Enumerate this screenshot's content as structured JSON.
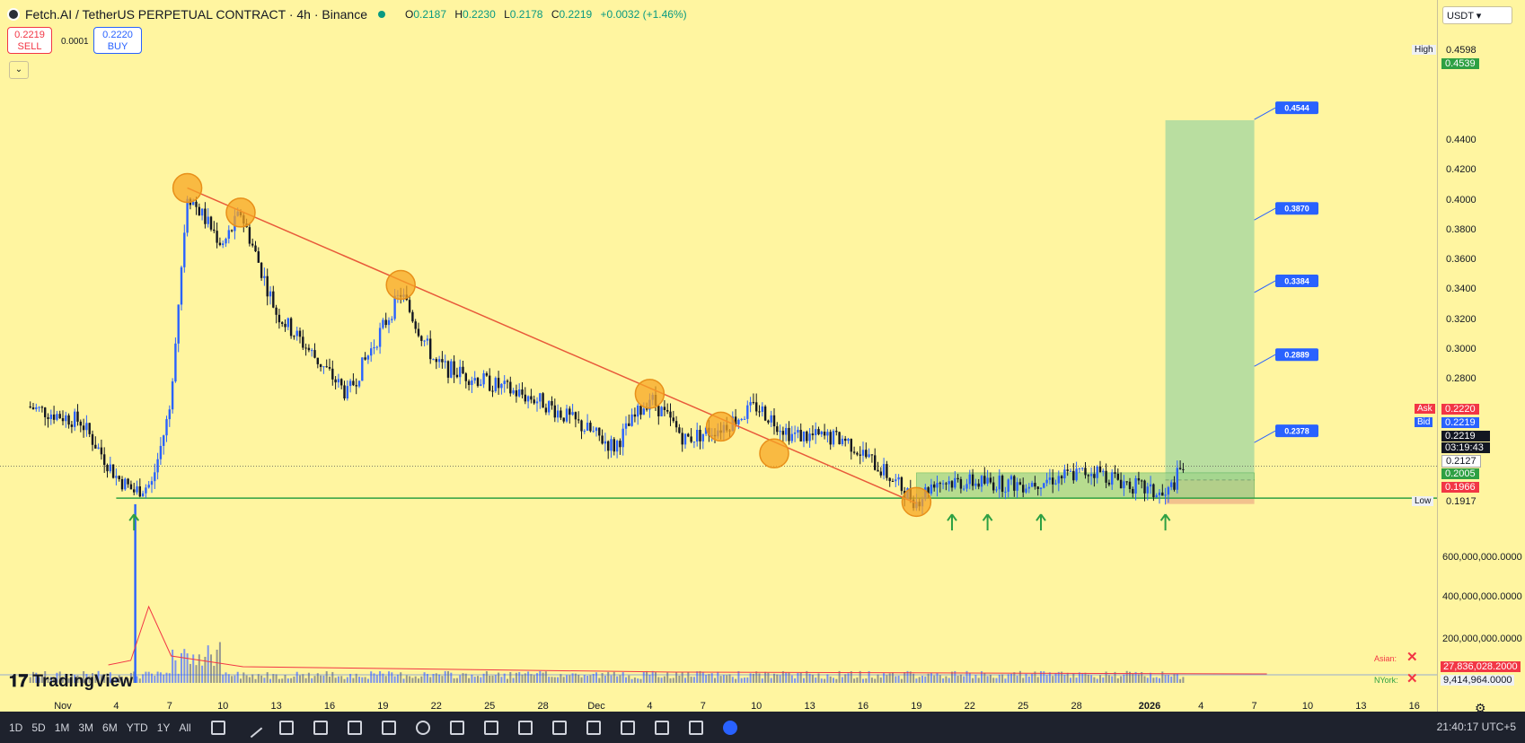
{
  "header": {
    "title": "Fetch.AI / TetherUS PERPETUAL CONTRACT · 4h · Binance",
    "ohlc": [
      {
        "label": "O",
        "value": "0.2187"
      },
      {
        "label": "H",
        "value": "0.2230"
      },
      {
        "label": "L",
        "value": "0.2178"
      },
      {
        "label": "C",
        "value": "0.2219"
      }
    ],
    "change": "+0.0032 (+1.46%)"
  },
  "trade": {
    "sell_price": "0.2219",
    "sell_label": "SELL",
    "spread": "0.0001",
    "buy_price": "0.2220",
    "buy_label": "BUY"
  },
  "currency": "USDT",
  "price_axis": {
    "ticks": [
      "0.4400",
      "0.4200",
      "0.4000",
      "0.3800",
      "0.3600",
      "0.3400",
      "0.3200",
      "0.3000",
      "0.2800",
      "0.2600"
    ],
    "high_label": "High",
    "high_value": "0.4598",
    "target_value": "0.4539",
    "ask_label": "Ask",
    "ask_value": "0.2220",
    "bid_label": "Bid",
    "bid_value": "0.2219",
    "last_price": "0.2219",
    "countdown": "03:19:43",
    "entry_value": "0.2127",
    "support_value": "0.2005",
    "stop_value": "0.1966",
    "low_label": "Low",
    "low_value": "0.1917"
  },
  "volume_axis": {
    "ticks": [
      "600,000,000.0000",
      "400,000,000.0000",
      "200,000,000.0000"
    ],
    "vol1": "27,836,028.2000",
    "vol2": "9,414,964.0000"
  },
  "sessions": [
    {
      "label": "Asian:"
    },
    {
      "label": "NYork:"
    }
  ],
  "x_axis": {
    "labels": [
      "Nov",
      "4",
      "7",
      "10",
      "13",
      "16",
      "19",
      "22",
      "25",
      "28",
      "Dec",
      "4",
      "7",
      "10",
      "13",
      "16",
      "19",
      "22",
      "25",
      "28",
      "2026",
      "4",
      "7",
      "10",
      "13",
      "16"
    ]
  },
  "targets": [
    "0.4544",
    "0.3870",
    "0.3384",
    "0.2889",
    "0.2378"
  ],
  "branding": "TradingView",
  "toolbar": {
    "timeframes": [
      "1D",
      "5D",
      "1M",
      "3M",
      "6M",
      "YTD",
      "1Y",
      "All"
    ],
    "clock": "21:40:17 UTC+5"
  },
  "colors": {
    "background": "#fff5a0",
    "trendline": "#e85a3a",
    "support": "#2ea043",
    "marker": "#f7a623",
    "target_zone": "#a8d8a0",
    "stop_zone": "#f0b98a",
    "target_label": "#2962ff",
    "up": "#2962ff",
    "down": "#131722"
  },
  "chart_data": {
    "type": "candlestick",
    "symbol": "Fetch.AI / TetherUS PERPETUAL CONTRACT",
    "interval": "4h",
    "exchange": "Binance",
    "ylim": [
      0.1917,
      0.4598
    ],
    "close_path": [
      {
        "date": "2025-10-30",
        "price": 0.262
      },
      {
        "date": "2025-11-02",
        "price": 0.252
      },
      {
        "date": "2025-11-04",
        "price": 0.215
      },
      {
        "date": "2025-11-05",
        "price": 0.205
      },
      {
        "date": "2025-11-06",
        "price": 0.21
      },
      {
        "date": "2025-11-07",
        "price": 0.26
      },
      {
        "date": "2025-11-08",
        "price": 0.405
      },
      {
        "date": "2025-11-10",
        "price": 0.37
      },
      {
        "date": "2025-11-11",
        "price": 0.392
      },
      {
        "date": "2025-11-13",
        "price": 0.325
      },
      {
        "date": "2025-11-17",
        "price": 0.27
      },
      {
        "date": "2025-11-20",
        "price": 0.338
      },
      {
        "date": "2025-11-22",
        "price": 0.29
      },
      {
        "date": "2025-11-28",
        "price": 0.265
      },
      {
        "date": "2025-12-02",
        "price": 0.235
      },
      {
        "date": "2025-12-04",
        "price": 0.268
      },
      {
        "date": "2025-12-06",
        "price": 0.24
      },
      {
        "date": "2025-12-08",
        "price": 0.248
      },
      {
        "date": "2025-12-10",
        "price": 0.262
      },
      {
        "date": "2025-12-12",
        "price": 0.243
      },
      {
        "date": "2025-12-15",
        "price": 0.24
      },
      {
        "date": "2025-12-17",
        "price": 0.22
      },
      {
        "date": "2025-12-19",
        "price": 0.198
      },
      {
        "date": "2025-12-20",
        "price": 0.212
      },
      {
        "date": "2025-12-25",
        "price": 0.21
      },
      {
        "date": "2025-12-29",
        "price": 0.219
      },
      {
        "date": "2026-01-02",
        "price": 0.201
      },
      {
        "date": "2026-01-03",
        "price": 0.2219
      }
    ],
    "trendline": [
      {
        "date": "2025-11-08",
        "price": 0.4085
      },
      {
        "date": "2025-12-19",
        "price": 0.197
      }
    ],
    "support_level": 0.2005,
    "touch_points": [
      {
        "date": "2025-11-08",
        "price": 0.4085
      },
      {
        "date": "2025-11-11",
        "price": 0.392
      },
      {
        "date": "2025-11-20",
        "price": 0.3435
      },
      {
        "date": "2025-12-04",
        "price": 0.2705
      },
      {
        "date": "2025-12-08",
        "price": 0.2485
      },
      {
        "date": "2025-12-11",
        "price": 0.2305
      },
      {
        "date": "2025-12-19",
        "price": 0.198
      }
    ],
    "support_arrows": [
      "2025-11-05",
      "2025-12-21",
      "2025-12-23",
      "2025-12-26",
      "2026-01-02"
    ],
    "consolidation_box": {
      "from": "2025-12-19",
      "to": "2026-01-07",
      "low": 0.2005,
      "high": 0.2175
    },
    "long_position": {
      "from": "2026-01-02",
      "to": "2026-01-07",
      "entry": 0.2127,
      "stop": 0.1966,
      "target": 0.4539
    },
    "volume_spike": {
      "date": "2025-11-08",
      "value": 660000000
    }
  }
}
